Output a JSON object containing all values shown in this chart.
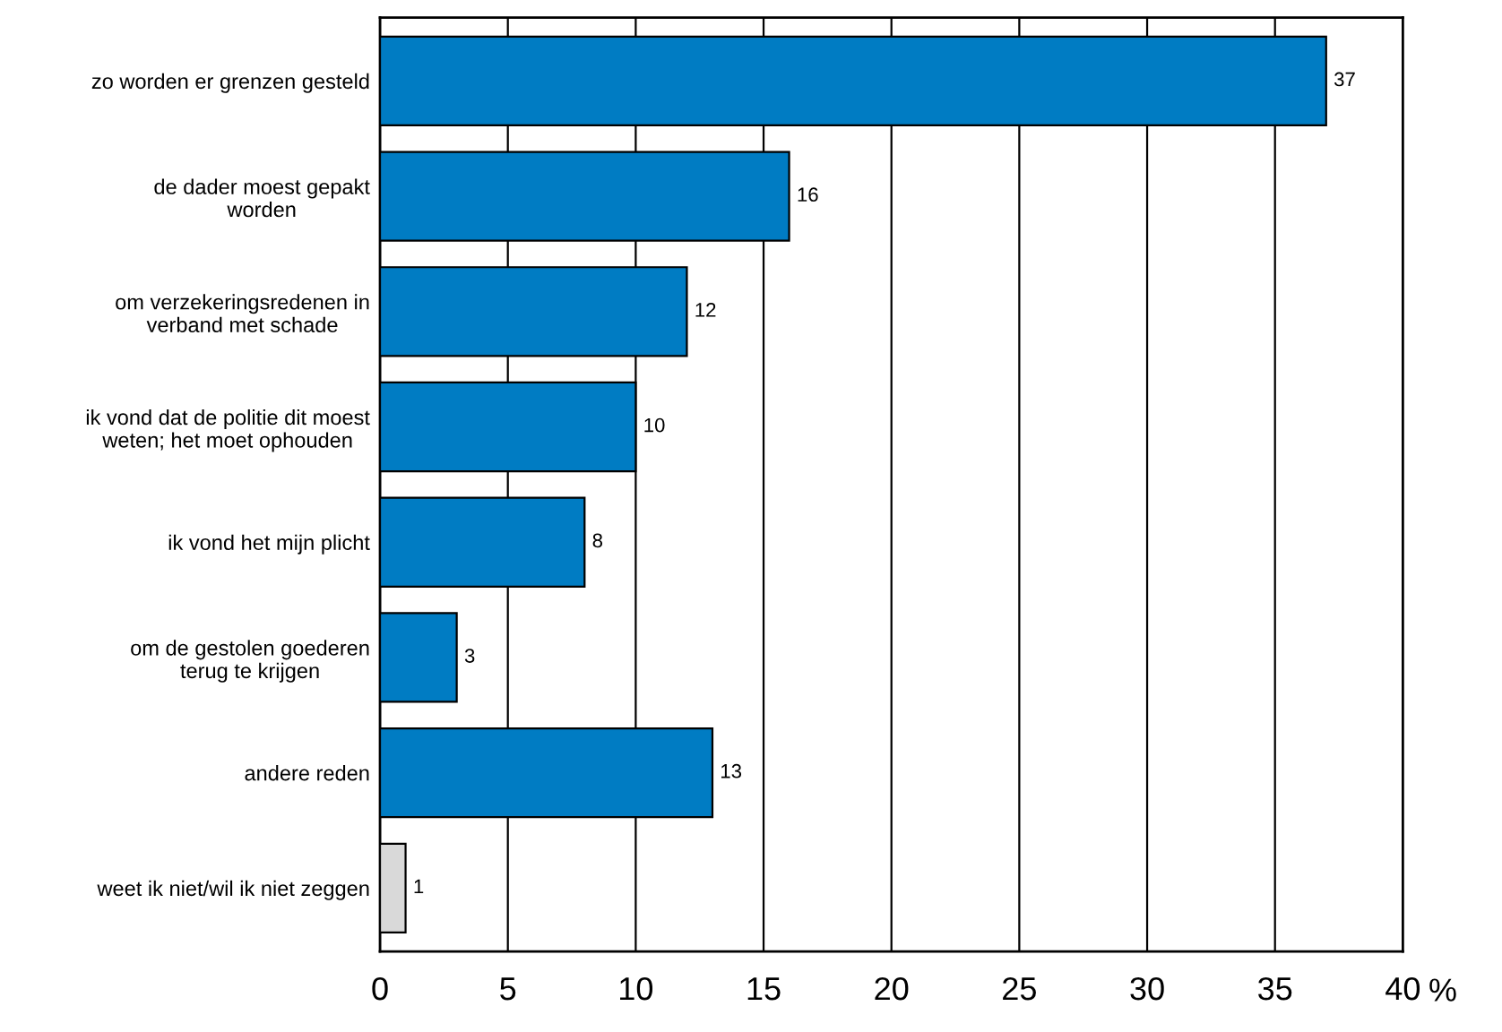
{
  "chart_data": {
    "type": "bar",
    "orientation": "horizontal",
    "categories": [
      "zo worden er grenzen gesteld",
      "de dader moest gepakt\nworden",
      "om verzekeringsredenen in\nverband met schade",
      "ik vond dat de politie dit moest\nweten; het moet ophouden",
      "ik vond het mijn plicht",
      "om de gestolen goederen\nterug te krijgen",
      "andere reden",
      "weet ik niet/wil ik niet zeggen"
    ],
    "values": [
      37,
      16,
      12,
      10,
      8,
      3,
      13,
      1
    ],
    "colors": [
      "#007cc3",
      "#007cc3",
      "#007cc3",
      "#007cc3",
      "#007cc3",
      "#007cc3",
      "#007cc3",
      "#d9d9d9"
    ],
    "data_labels": true,
    "xlabel": "%",
    "xlim": [
      0,
      40
    ],
    "xticks": [
      0,
      5,
      10,
      15,
      20,
      25,
      30,
      35,
      40
    ],
    "grid": "x",
    "legend": false
  }
}
